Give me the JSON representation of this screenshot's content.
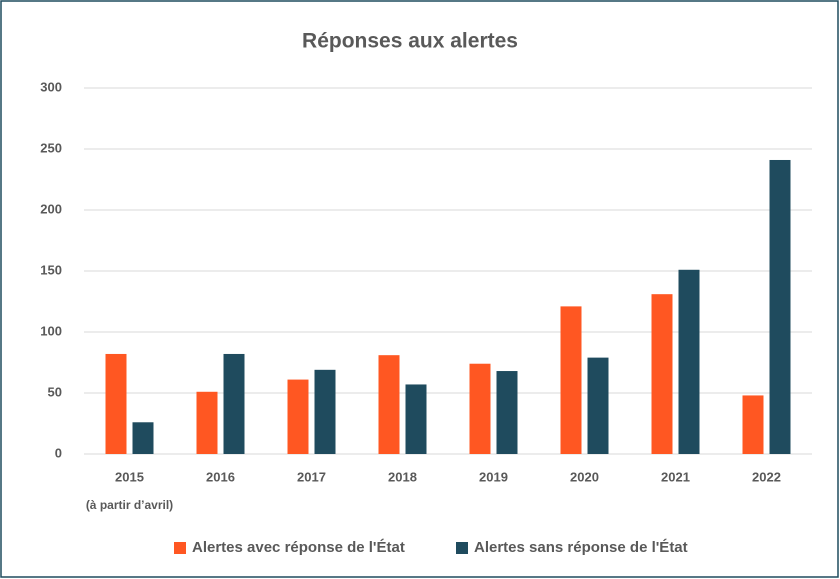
{
  "chart_data": {
    "type": "bar",
    "title": "Réponses aux alertes",
    "categories": [
      "2015",
      "2016",
      "2017",
      "2018",
      "2019",
      "2020",
      "2021",
      "2022"
    ],
    "annotation": "(à partir d’avril)",
    "series": [
      {
        "name": "Alertes avec réponse de l'État",
        "color": "#ff5722",
        "values": [
          82,
          51,
          61,
          81,
          74,
          121,
          131,
          48
        ]
      },
      {
        "name": "Alertes sans réponse de l'État",
        "color": "#1f4b5e",
        "values": [
          26,
          82,
          69,
          57,
          68,
          79,
          151,
          241
        ]
      }
    ],
    "ylim": [
      0,
      300
    ],
    "yticks": [
      0,
      50,
      100,
      150,
      200,
      250,
      300
    ],
    "grid": true,
    "legend": "bottom"
  }
}
